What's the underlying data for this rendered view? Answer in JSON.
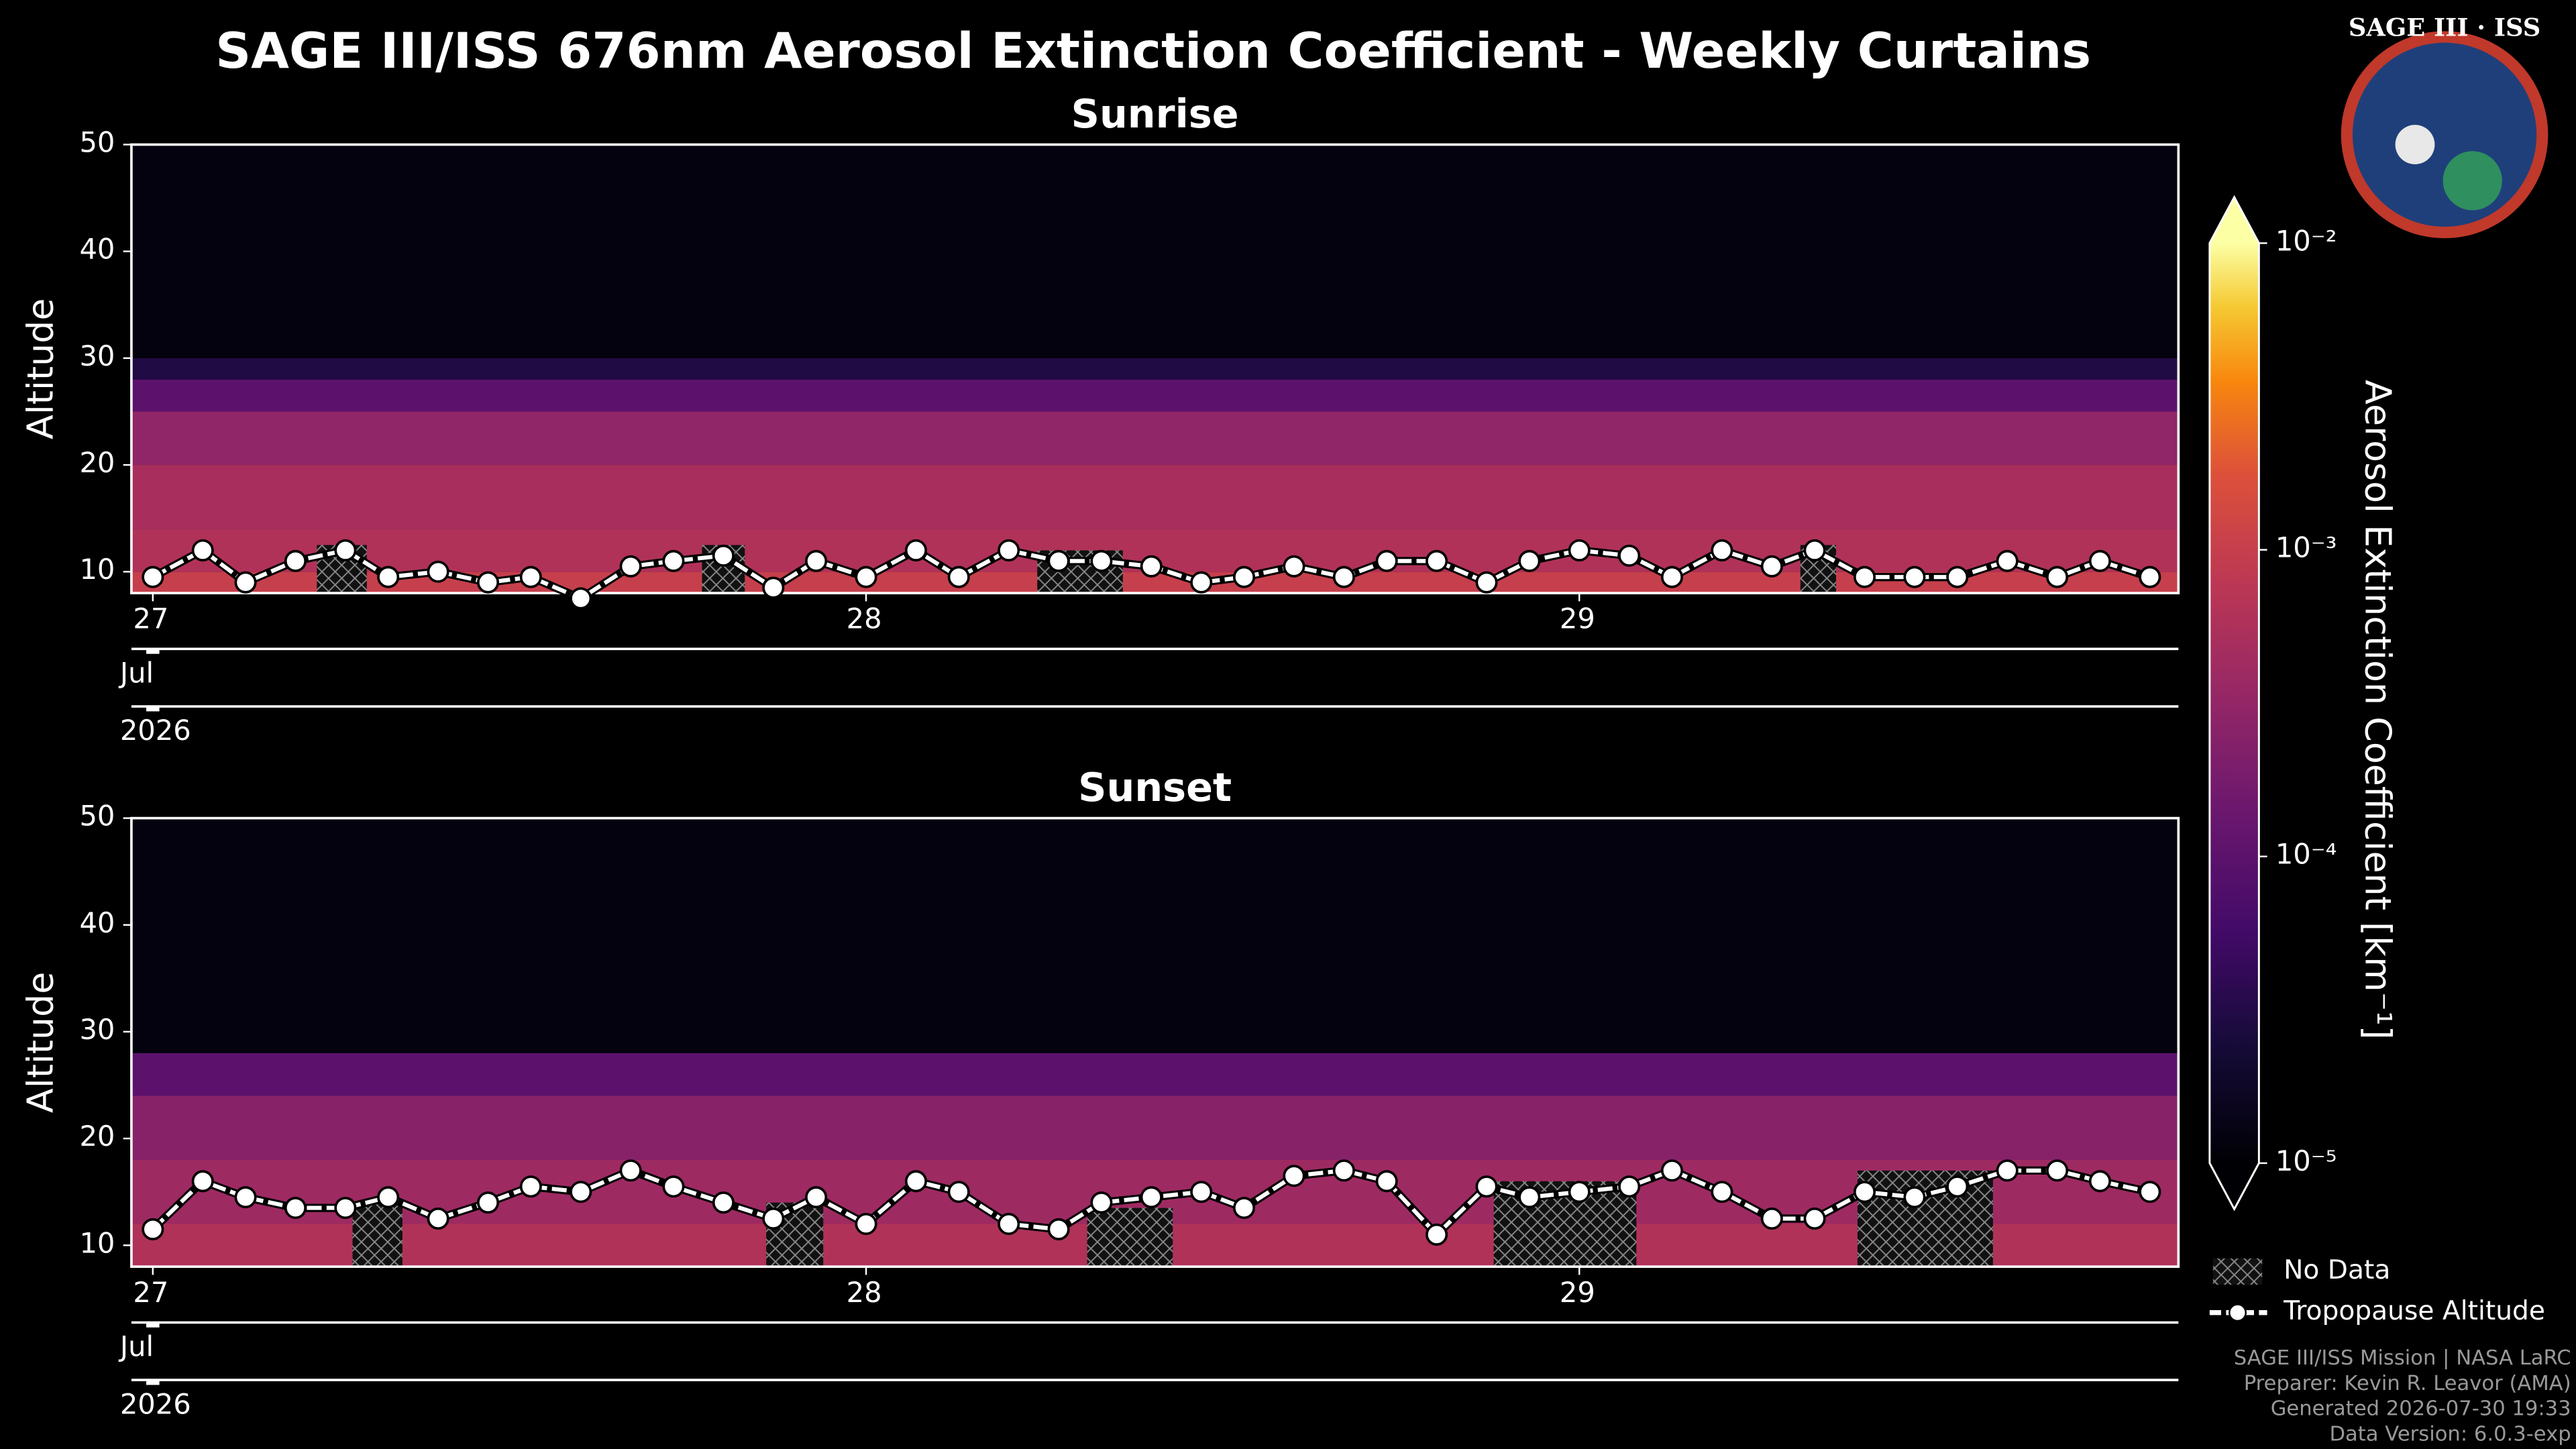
{
  "title": "SAGE III/ISS 676nm Aerosol Extinction Coefficient - Weekly Curtains",
  "logo": "SAGE III · ISS",
  "colorbar": {
    "label": "Aerosol Extinction Coefficient [km⁻¹]",
    "colormap": "inferno",
    "log": true,
    "lim": [
      1e-05,
      0.01
    ],
    "ticks": [
      {
        "value": 1e-05,
        "label": "10⁻⁵"
      },
      {
        "value": 0.0001,
        "label": "10⁻⁴"
      },
      {
        "value": 0.001,
        "label": "10⁻³"
      },
      {
        "value": 0.01,
        "label": "10⁻²"
      }
    ]
  },
  "legend": [
    "No Data",
    "Tropopause Altitude"
  ],
  "footer": [
    "SAGE III/ISS Mission | NASA LaRC",
    "Preparer: Kevin R. Leavor (AMA)",
    "Generated 2026-07-30 19:33",
    "Data Version: 6.0.3-exp"
  ],
  "chart_data": [
    {
      "type": "curtain",
      "title": "Sunrise",
      "ylabel": "Altitude",
      "month_label": "Jul",
      "year_label": "2026",
      "xlim": [
        26.97,
        29.84
      ],
      "xticks": [
        27,
        28,
        29
      ],
      "ylim": [
        8,
        50
      ],
      "yticks": [
        10,
        20,
        30,
        40,
        50
      ],
      "bands": [
        {
          "bottom": 8,
          "top": 10,
          "value": 0.001
        },
        {
          "bottom": 10,
          "top": 14,
          "value": 0.0006
        },
        {
          "bottom": 14,
          "top": 20,
          "value": 0.0005
        },
        {
          "bottom": 20,
          "top": 25,
          "value": 0.0003
        },
        {
          "bottom": 25,
          "top": 28,
          "value": 0.0001
        },
        {
          "bottom": 28,
          "top": 30,
          "value": 3e-05
        },
        {
          "bottom": 30,
          "top": 50,
          "value": 1.2e-05
        }
      ],
      "no_data": [
        {
          "x0": 27.23,
          "x1": 27.3,
          "top": 12.5
        },
        {
          "x0": 27.77,
          "x1": 27.83,
          "top": 12.5
        },
        {
          "x0": 28.24,
          "x1": 28.36,
          "top": 12
        },
        {
          "x0": 29.31,
          "x1": 29.36,
          "top": 12.5
        }
      ],
      "series": [
        {
          "color": "#ffffff",
          "x": [
            27.0,
            27.07,
            27.13,
            27.2,
            27.27,
            27.33,
            27.4,
            27.47,
            27.53,
            27.6,
            27.67,
            27.73,
            27.8,
            27.87,
            27.93,
            28.0,
            28.07,
            28.13,
            28.2,
            28.27,
            28.33,
            28.4,
            28.47,
            28.53,
            28.6,
            28.67,
            28.73,
            28.8,
            28.87,
            28.93,
            29.0,
            29.07,
            29.13,
            29.2,
            29.27,
            29.33,
            29.4,
            29.47,
            29.53,
            29.6,
            29.67,
            29.73,
            29.8
          ],
          "values": [
            9.5,
            12,
            9,
            11,
            12,
            9.5,
            10,
            9,
            9.5,
            7.5,
            10.5,
            11,
            11.5,
            8.5,
            11,
            9.5,
            12,
            9.5,
            12,
            11,
            11,
            10.5,
            9,
            9.5,
            10.5,
            9.5,
            11,
            11,
            9,
            11,
            12,
            11.5,
            9.5,
            12,
            10.5,
            12,
            9.5,
            9.5,
            9.5,
            11,
            9.5,
            11,
            9.5
          ]
        }
      ]
    },
    {
      "type": "curtain",
      "title": "Sunset",
      "ylabel": "Altitude",
      "month_label": "Jul",
      "year_label": "2026",
      "xlim": [
        26.97,
        29.84
      ],
      "xticks": [
        27,
        28,
        29
      ],
      "ylim": [
        8,
        50
      ],
      "yticks": [
        10,
        20,
        30,
        40,
        50
      ],
      "bands": [
        {
          "bottom": 8,
          "top": 12,
          "value": 0.0006
        },
        {
          "bottom": 12,
          "top": 18,
          "value": 0.0004
        },
        {
          "bottom": 18,
          "top": 24,
          "value": 0.00025
        },
        {
          "bottom": 24,
          "top": 28,
          "value": 0.0001
        },
        {
          "bottom": 28,
          "top": 50,
          "value": 1.2e-05
        }
      ],
      "no_data": [
        {
          "x0": 27.28,
          "x1": 27.35,
          "top": 14
        },
        {
          "x0": 27.86,
          "x1": 27.94,
          "top": 14
        },
        {
          "x0": 28.31,
          "x1": 28.43,
          "top": 13.5
        },
        {
          "x0": 28.88,
          "x1": 29.08,
          "top": 16
        },
        {
          "x0": 29.39,
          "x1": 29.58,
          "top": 17
        }
      ],
      "series": [
        {
          "color": "#ffffff",
          "x": [
            27.0,
            27.07,
            27.13,
            27.2,
            27.27,
            27.33,
            27.4,
            27.47,
            27.53,
            27.6,
            27.67,
            27.73,
            27.8,
            27.87,
            27.93,
            28.0,
            28.07,
            28.13,
            28.2,
            28.27,
            28.33,
            28.4,
            28.47,
            28.53,
            28.6,
            28.67,
            28.73,
            28.8,
            28.87,
            28.93,
            29.0,
            29.07,
            29.13,
            29.2,
            29.27,
            29.33,
            29.4,
            29.47,
            29.53,
            29.6,
            29.67,
            29.73,
            29.8
          ],
          "values": [
            11.5,
            16,
            14.5,
            13.5,
            13.5,
            14.5,
            12.5,
            14,
            15.5,
            15,
            17,
            15.5,
            14,
            12.5,
            14.5,
            12,
            16,
            15,
            12,
            11.5,
            14,
            14.5,
            15,
            13.5,
            16.5,
            17,
            16,
            11,
            15.5,
            14.5,
            15,
            15.5,
            17,
            15,
            12.5,
            12.5,
            15,
            14.5,
            15.5,
            17,
            17,
            16,
            15
          ]
        }
      ]
    }
  ]
}
